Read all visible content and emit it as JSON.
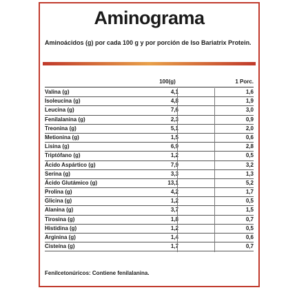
{
  "title": "Aminograma",
  "subtitle": "Aminoácidos (g) por cada 100 g y por porción de Iso Bariatrix Protein.",
  "columns": {
    "per100": "100(g)",
    "portion": "1 Porc."
  },
  "rows": [
    {
      "name": "Valina (g)",
      "per100": "4,1",
      "portion": "1,6"
    },
    {
      "name": "Isoleucina (g)",
      "per100": "4,8",
      "portion": "1,9"
    },
    {
      "name": "Leucina (g)",
      "per100": "7,6",
      "portion": "3,0"
    },
    {
      "name": "Fenilalanina (g)",
      "per100": "2,3",
      "portion": "0,9"
    },
    {
      "name": "Treonina (g)",
      "per100": "5,1",
      "portion": "2,0"
    },
    {
      "name": "Metionina (g)",
      "per100": "1,5",
      "portion": "0,6"
    },
    {
      "name": "Lisina (g)",
      "per100": "6,9",
      "portion": "2,8"
    },
    {
      "name": "Triptófano (g)",
      "per100": "1,2",
      "portion": "0,5"
    },
    {
      "name": "Ácido Aspártico (g)",
      "per100": "7,9",
      "portion": "3,2"
    },
    {
      "name": "Serina (g)",
      "per100": "3,3",
      "portion": "1,3"
    },
    {
      "name": "Ácido Glutámico (g)",
      "per100": "13,1",
      "portion": "5,2"
    },
    {
      "name": "Prolina (g)",
      "per100": "4,2",
      "portion": "1,7"
    },
    {
      "name": "Glicina (g)",
      "per100": "1,2",
      "portion": "0,5"
    },
    {
      "name": "Alanina (g)",
      "per100": "3,7",
      "portion": "1,5"
    },
    {
      "name": "Tirosina (g)",
      "per100": "1,8",
      "portion": "0,7"
    },
    {
      "name": "Histidina (g)",
      "per100": "1,2",
      "portion": "0,5"
    },
    {
      "name": "Arginina (g)",
      "per100": "1,4",
      "portion": "0,6"
    },
    {
      "name": "Cisteína (g)",
      "per100": "1,7",
      "portion": "0,7"
    }
  ],
  "footer": "Fenilcetonúricos: Contiene fenilalanina.",
  "colors": {
    "border": "#c0392b",
    "accent": "#e8a04a"
  }
}
